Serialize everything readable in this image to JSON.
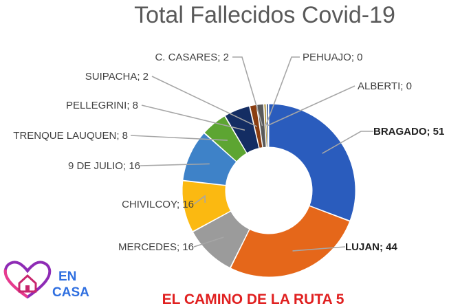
{
  "chart_data": {
    "type": "pie",
    "style": "donut",
    "title": "Total Fallecidos Covid-19",
    "slices": [
      {
        "label": "BRAGADO",
        "value": 51,
        "text": "BRAGADO; 51",
        "color": "#2a5cbd",
        "bold": true
      },
      {
        "label": "LUJAN",
        "value": 44,
        "text": "LUJAN; 44",
        "color": "#e5671a",
        "bold": true
      },
      {
        "label": "MERCEDES",
        "value": 16,
        "text": "MERCEDES; 16",
        "color": "#9b9b9b",
        "bold": false
      },
      {
        "label": "CHIVILCOY",
        "value": 16,
        "text": "CHIVILCOY; 16",
        "color": "#fbb911",
        "bold": false
      },
      {
        "label": "9 DE JULIO",
        "value": 16,
        "text": "9 DE JULIO; 16",
        "color": "#3e82c8",
        "bold": false
      },
      {
        "label": "TRENQUE LAUQUEN",
        "value": 8,
        "text": "TRENQUE LAUQUEN; 8",
        "color": "#5da532",
        "bold": false
      },
      {
        "label": "PELLEGRINI",
        "value": 8,
        "text": "PELLEGRINI; 8",
        "color": "#142d63",
        "bold": false
      },
      {
        "label": "SUIPACHA",
        "value": 2,
        "text": "SUIPACHA; 2",
        "color": "#8a3e12",
        "bold": false
      },
      {
        "label": "C. CASARES",
        "value": 2,
        "text": "C. CASARES; 2",
        "color": "#5a5a5a",
        "bold": false
      },
      {
        "label": "PEHUAJO",
        "value": 0,
        "text": "PEHUAJO; 0",
        "color": "#997300",
        "bold": false
      },
      {
        "label": "ALBERTI",
        "value": 0,
        "text": "ALBERTI; 0",
        "color": "#264478",
        "bold": false
      }
    ]
  },
  "logo": {
    "line1": "EN",
    "line2": "CASA",
    "icon": "heart-house-icon"
  },
  "footer": {
    "text": "EL CAMINO DE LA RUTA 5"
  }
}
